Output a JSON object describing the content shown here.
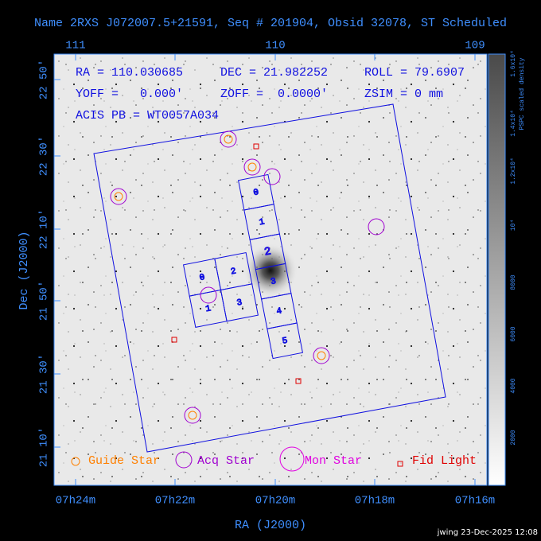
{
  "header": {
    "title": "Name 2RXS J072007.5+21591, Seq # 201904, Obsid 32078, ST Scheduled"
  },
  "info": {
    "ra": "RA = 110.030685",
    "dec": "DEC = 21.982252",
    "roll": "ROLL = 79.6907",
    "yoff": "YOFF =   0.000'",
    "zoff": "ZOFF =  0.0000'",
    "zsim": "ZSIM = 0 mm",
    "acis_pb": "ACIS PB = WT0057A034"
  },
  "axes": {
    "top_ticks": [
      "111",
      "110",
      "109"
    ],
    "bottom_ticks": [
      "07h24m",
      "07h22m",
      "07h20m",
      "07h18m",
      "07h16m"
    ],
    "left_ticks": [
      "22 50'",
      "22 30'",
      "22 10'",
      "21 50'",
      "21 30'",
      "21 10'"
    ],
    "x_label": "RA (J2000)",
    "y_label": "Dec (J2000)"
  },
  "colorbar": {
    "title": "PSPC scaled density",
    "ticks": [
      "1.6x10⁴",
      "1.4x10⁴",
      "1.2x10⁴",
      "10⁴",
      "8000",
      "6000",
      "4000",
      "2000"
    ]
  },
  "chips": {
    "i_array": [
      "0",
      "2",
      "1",
      "3"
    ],
    "s_array": [
      "0",
      "1",
      "2",
      "3",
      "4",
      "5"
    ]
  },
  "legend": [
    "Guide Star",
    "Acq Star",
    "Mon Star",
    "Fid Light"
  ],
  "footer": "jwing 23-Dec-2025 12:08"
}
